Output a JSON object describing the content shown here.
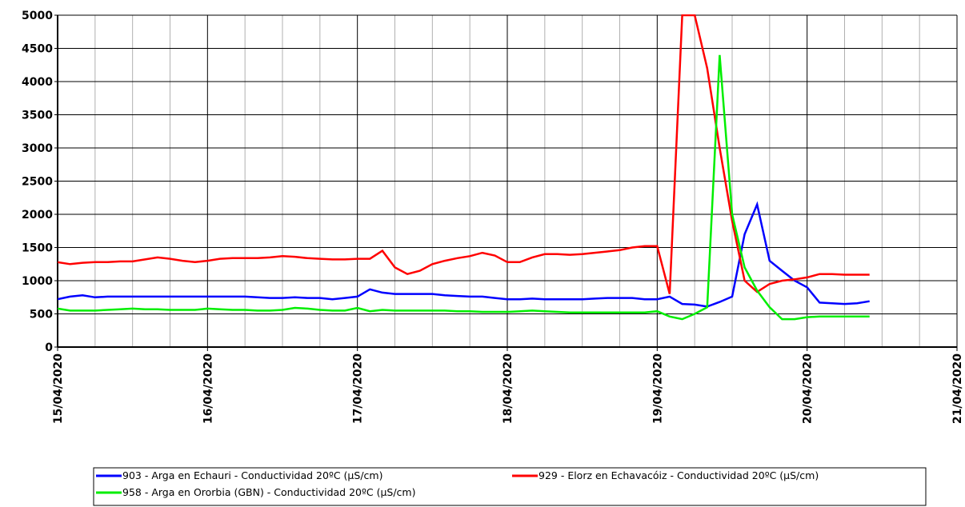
{
  "chart_data": {
    "type": "line",
    "x": [
      "15/04/2020",
      null,
      null,
      null,
      null,
      null,
      null,
      null,
      null,
      null,
      null,
      null,
      "16/04/2020",
      null,
      null,
      null,
      null,
      null,
      null,
      null,
      null,
      null,
      null,
      null,
      "17/04/2020",
      null,
      null,
      null,
      null,
      null,
      null,
      null,
      null,
      null,
      null,
      null,
      "18/04/2020",
      null,
      null,
      null,
      null,
      null,
      null,
      null,
      null,
      null,
      null,
      null,
      "19/04/2020",
      null,
      null,
      null,
      null,
      null,
      null,
      null,
      null,
      null,
      null,
      null,
      "20/04/2020",
      null,
      null,
      null,
      null,
      null,
      null,
      null,
      null,
      null,
      null,
      null,
      "21/04/2020"
    ],
    "series": [
      {
        "name": "903 - Arga en Echauri - Conductividad 20ºC (µS/cm)",
        "color": "#0000ff",
        "values": [
          720,
          760,
          780,
          750,
          760,
          760,
          760,
          760,
          760,
          760,
          760,
          760,
          760,
          760,
          760,
          760,
          750,
          740,
          740,
          750,
          740,
          740,
          720,
          740,
          760,
          870,
          820,
          800,
          800,
          800,
          800,
          780,
          770,
          760,
          760,
          740,
          720,
          720,
          730,
          720,
          720,
          720,
          720,
          730,
          740,
          740,
          740,
          720,
          720,
          760,
          650,
          640,
          610,
          680,
          760,
          1700,
          2150,
          1300,
          1150,
          1000,
          900,
          670,
          660,
          650,
          660,
          690,
          null,
          null,
          null,
          null,
          null,
          null,
          null
        ]
      },
      {
        "name": "929 - Elorz en Echavacóiz - Conductividad 20ºC (µS/cm)",
        "color": "#ff0000",
        "values": [
          1280,
          1250,
          1270,
          1280,
          1280,
          1290,
          1290,
          1320,
          1350,
          1330,
          1300,
          1280,
          1300,
          1330,
          1340,
          1340,
          1340,
          1350,
          1370,
          1360,
          1340,
          1330,
          1320,
          1320,
          1330,
          1330,
          1450,
          1200,
          1100,
          1150,
          1250,
          1300,
          1340,
          1370,
          1420,
          1380,
          1280,
          1280,
          1350,
          1400,
          1400,
          1390,
          1400,
          1420,
          1440,
          1460,
          1500,
          1520,
          1520,
          800,
          5000,
          5000,
          4200,
          3000,
          1900,
          1000,
          830,
          950,
          1000,
          1020,
          1050,
          1100,
          1100,
          1090,
          1090,
          1090,
          null,
          null,
          null,
          null,
          null,
          null,
          null
        ]
      },
      {
        "name": "958 - Arga en Ororbia (GBN) - Conductividad 20ºC (µS/cm)",
        "color": "#00ee00",
        "values": [
          580,
          550,
          550,
          550,
          560,
          570,
          580,
          570,
          570,
          560,
          560,
          560,
          580,
          570,
          560,
          560,
          550,
          550,
          560,
          590,
          580,
          560,
          550,
          550,
          590,
          540,
          560,
          550,
          550,
          550,
          550,
          550,
          540,
          540,
          530,
          530,
          530,
          540,
          550,
          540,
          530,
          520,
          520,
          520,
          520,
          520,
          520,
          520,
          540,
          460,
          420,
          500,
          600,
          4400,
          2000,
          1200,
          850,
          600,
          420,
          420,
          450,
          460,
          460,
          460,
          460,
          460,
          null,
          null,
          null,
          null,
          null,
          null,
          null
        ]
      }
    ],
    "ylim": [
      0,
      5000
    ],
    "yticks": [
      0,
      500,
      1000,
      1500,
      2000,
      2500,
      3000,
      3500,
      4000,
      4500,
      5000
    ],
    "grid": true
  }
}
